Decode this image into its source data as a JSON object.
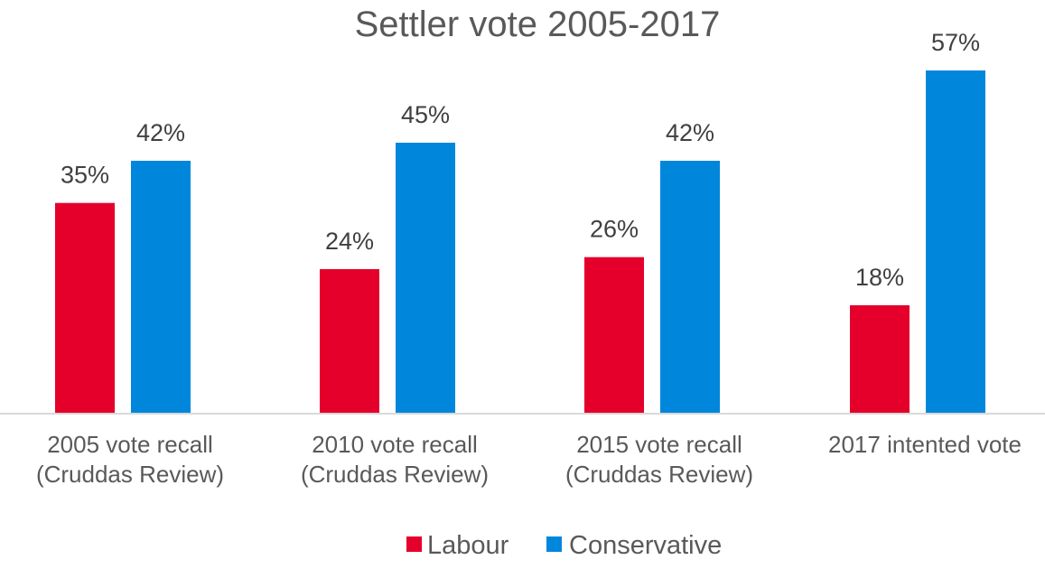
{
  "chart_data": {
    "type": "bar",
    "title": "Settler vote 2005-2017",
    "categories": [
      [
        "2005 vote recall",
        "(Cruddas Review)"
      ],
      [
        "2010 vote recall",
        "(Cruddas Review)"
      ],
      [
        "2015 vote recall",
        "(Cruddas Review)"
      ],
      [
        "2017 intented vote"
      ]
    ],
    "series": [
      {
        "name": "Labour",
        "color": "#E4002B",
        "values": [
          35,
          24,
          26,
          18
        ],
        "labels": [
          "35%",
          "24%",
          "26%",
          "18%"
        ]
      },
      {
        "name": "Conservative",
        "color": "#0087DC",
        "values": [
          42,
          45,
          42,
          57
        ],
        "labels": [
          "42%",
          "45%",
          "42%",
          "57%"
        ]
      }
    ],
    "ylim": [
      0,
      60
    ],
    "grid": false,
    "legend_position": "bottom"
  }
}
